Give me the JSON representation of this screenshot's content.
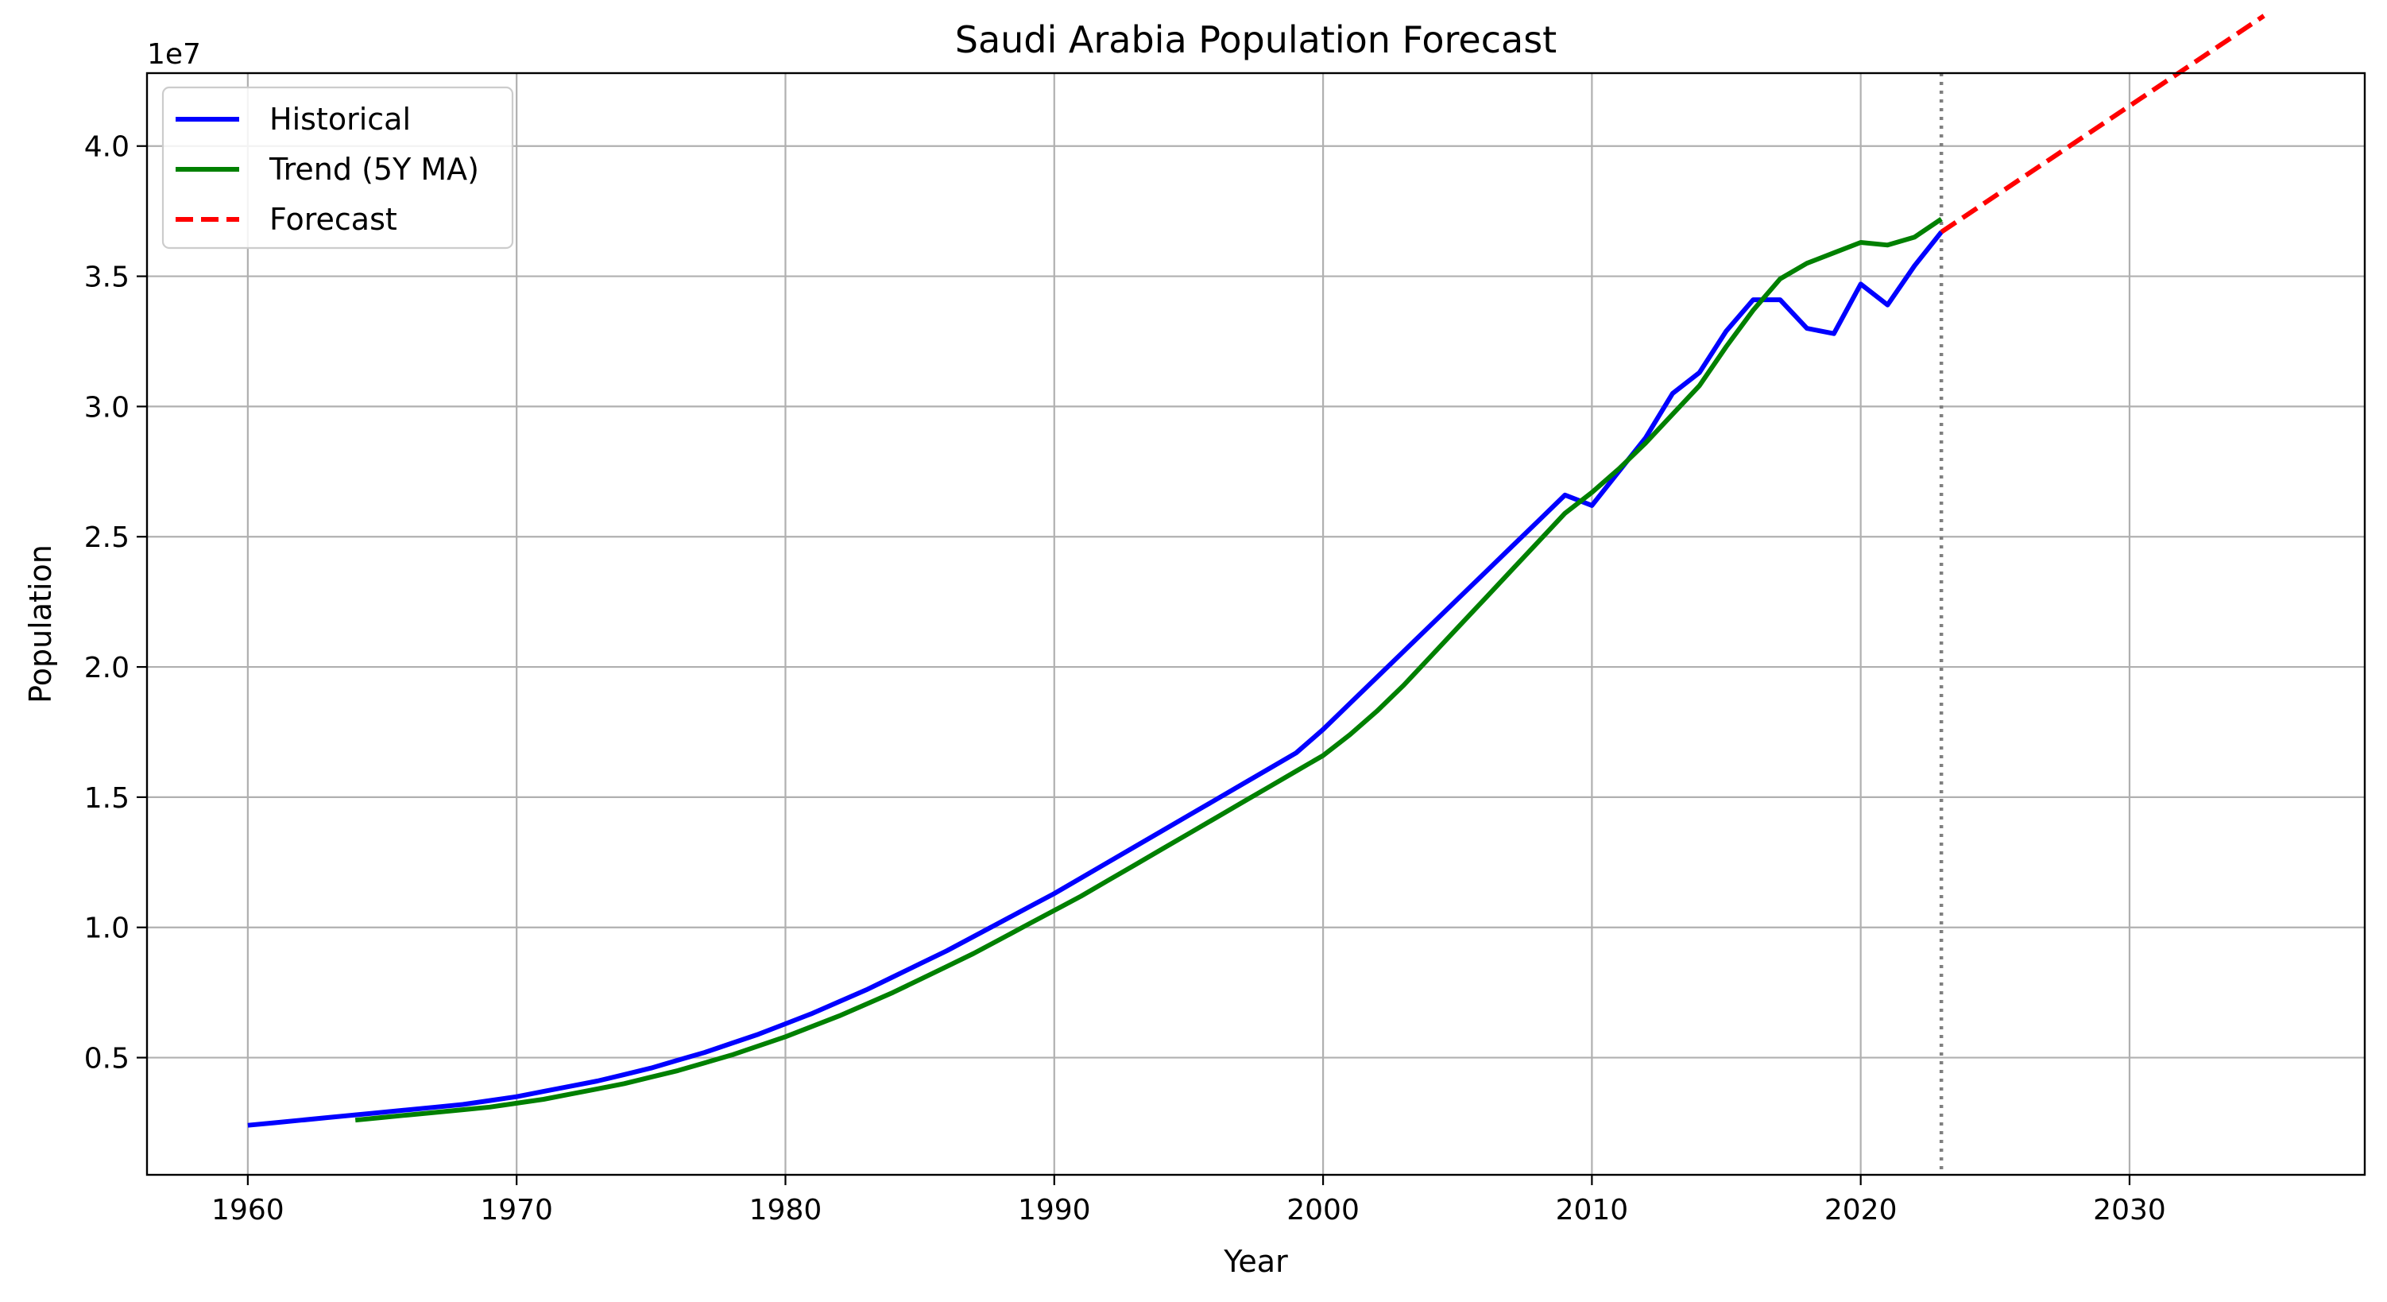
{
  "chart_data": {
    "type": "line",
    "title": "Saudi Arabia Population Forecast",
    "xlabel": "Year",
    "ylabel": "Population",
    "y_offset_label": "1e7",
    "xlim": [
      1956.25,
      2038.75
    ],
    "ylim": [
      0.05,
      4.28
    ],
    "x_ticks": [
      1960,
      1970,
      1980,
      1990,
      2000,
      2010,
      2020,
      2030
    ],
    "y_ticks": [
      0.5,
      1.0,
      1.5,
      2.0,
      2.5,
      3.0,
      3.5,
      4.0
    ],
    "y_tick_labels": [
      "0.5",
      "1.0",
      "1.5",
      "2.0",
      "2.5",
      "3.0",
      "3.5",
      "4.0"
    ],
    "grid": true,
    "legend_position": "top-left",
    "vertical_marker": {
      "x": 2023,
      "style": "dotted",
      "color": "#808080"
    },
    "series": [
      {
        "name": "Historical",
        "color": "#0000ff",
        "style": "solid",
        "x": [
          1960,
          1961,
          1962,
          1963,
          1964,
          1965,
          1966,
          1967,
          1968,
          1969,
          1970,
          1971,
          1972,
          1973,
          1974,
          1975,
          1976,
          1977,
          1978,
          1979,
          1980,
          1981,
          1982,
          1983,
          1984,
          1985,
          1986,
          1987,
          1988,
          1989,
          1990,
          1991,
          1992,
          1993,
          1994,
          1995,
          1996,
          1997,
          1998,
          1999,
          2000,
          2001,
          2002,
          2003,
          2004,
          2005,
          2006,
          2007,
          2008,
          2009,
          2010,
          2011,
          2012,
          2013,
          2014,
          2015,
          2016,
          2017,
          2018,
          2019,
          2020,
          2021,
          2022,
          2023
        ],
        "y": [
          0.24,
          0.25,
          0.26,
          0.27,
          0.28,
          0.29,
          0.3,
          0.31,
          0.32,
          0.335,
          0.35,
          0.37,
          0.39,
          0.41,
          0.435,
          0.46,
          0.49,
          0.52,
          0.555,
          0.59,
          0.63,
          0.67,
          0.715,
          0.76,
          0.81,
          0.86,
          0.91,
          0.965,
          1.02,
          1.075,
          1.13,
          1.19,
          1.25,
          1.31,
          1.37,
          1.43,
          1.49,
          1.55,
          1.61,
          1.67,
          1.76,
          1.86,
          1.96,
          2.06,
          2.16,
          2.26,
          2.36,
          2.46,
          2.56,
          2.66,
          2.62,
          2.75,
          2.88,
          3.05,
          3.13,
          3.29,
          3.41,
          3.41,
          3.3,
          3.28,
          3.47,
          3.39,
          3.54,
          3.67
        ]
      },
      {
        "name": "Trend (5Y MA)",
        "color": "#008000",
        "style": "solid",
        "x": [
          1964,
          1965,
          1966,
          1967,
          1968,
          1969,
          1970,
          1971,
          1972,
          1973,
          1974,
          1975,
          1976,
          1977,
          1978,
          1979,
          1980,
          1981,
          1982,
          1983,
          1984,
          1985,
          1986,
          1987,
          1988,
          1989,
          1990,
          1991,
          1992,
          1993,
          1994,
          1995,
          1996,
          1997,
          1998,
          1999,
          2000,
          2001,
          2002,
          2003,
          2004,
          2005,
          2006,
          2007,
          2008,
          2009,
          2010,
          2011,
          2012,
          2013,
          2014,
          2015,
          2016,
          2017,
          2018,
          2019,
          2020,
          2021,
          2022,
          2023
        ],
        "y": [
          0.26,
          0.27,
          0.28,
          0.29,
          0.3,
          0.31,
          0.325,
          0.34,
          0.36,
          0.38,
          0.4,
          0.425,
          0.45,
          0.48,
          0.51,
          0.545,
          0.58,
          0.62,
          0.66,
          0.705,
          0.75,
          0.8,
          0.85,
          0.9,
          0.955,
          1.01,
          1.065,
          1.12,
          1.18,
          1.24,
          1.3,
          1.36,
          1.42,
          1.48,
          1.54,
          1.6,
          1.66,
          1.74,
          1.83,
          1.93,
          2.04,
          2.15,
          2.26,
          2.37,
          2.48,
          2.59,
          2.67,
          2.76,
          2.86,
          2.97,
          3.08,
          3.23,
          3.37,
          3.49,
          3.55,
          3.59,
          3.63,
          3.62,
          3.65,
          3.72
        ]
      },
      {
        "name": "Forecast",
        "color": "#ff0000",
        "style": "dashed",
        "x": [
          2023,
          2035
        ],
        "y": [
          3.67,
          4.5
        ]
      }
    ]
  }
}
